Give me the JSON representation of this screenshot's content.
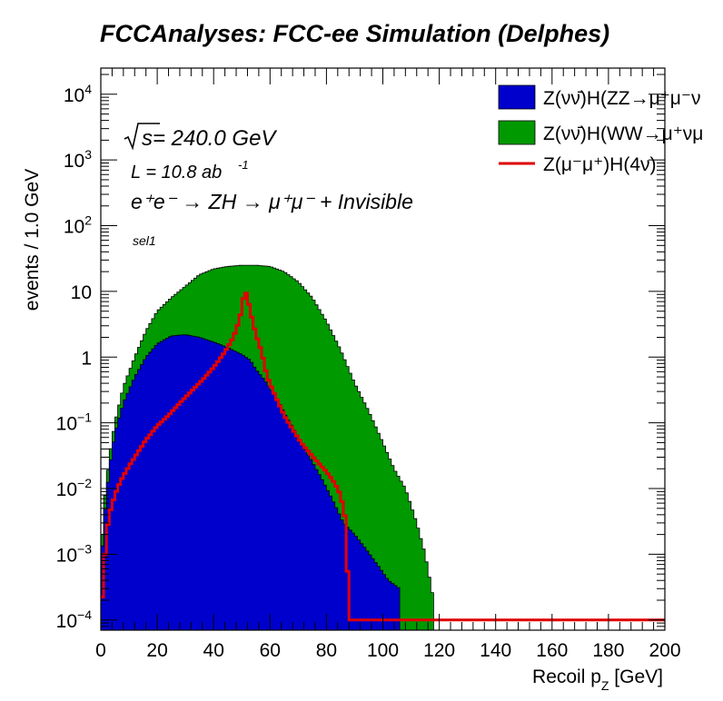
{
  "chart_data": {
    "type": "area",
    "title": "FCCAnalyses: FCC-ee Simulation (Delphes)",
    "xlabel": "Recoil p_Z [GeV]",
    "xlabel_main": "Recoil p",
    "xlabel_sub": "Z",
    "xlabel_unit": " [GeV]",
    "ylabel": "events / 1.0 GeV",
    "xlim": [
      0,
      200
    ],
    "ylim": [
      7e-05,
      25000
    ],
    "yscale": "log",
    "grid": false,
    "legend_position": "top-right",
    "x_ticks": [
      "0",
      "20",
      "40",
      "60",
      "80",
      "100",
      "120",
      "140",
      "160",
      "180",
      "200"
    ],
    "y_ticks": [
      {
        "value": 0.0001,
        "label": "10",
        "exp": "−4"
      },
      {
        "value": 0.001,
        "label": "10",
        "exp": "−3"
      },
      {
        "value": 0.01,
        "label": "10",
        "exp": "−2"
      },
      {
        "value": 0.1,
        "label": "10",
        "exp": "−1"
      },
      {
        "value": 1,
        "label": "1",
        "exp": ""
      },
      {
        "value": 10,
        "label": "10",
        "exp": ""
      },
      {
        "value": 100,
        "label": "10",
        "exp": "2"
      },
      {
        "value": 1000,
        "label": "10",
        "exp": "3"
      },
      {
        "value": 10000,
        "label": "10",
        "exp": "4"
      }
    ],
    "annotations": {
      "sqrt_s": "√s = 240.0 GeV",
      "sqrt_s_value": " = 240.0 GeV",
      "lumi": "L = 10.8 ab",
      "lumi_exp": "-1",
      "process": "e⁺e⁻ → ZH → μ⁺μ⁻ + Invisible",
      "selection": "sel1"
    },
    "series": [
      {
        "name": "Z(νν̄)H(ZZ→μ⁺μ⁻ν",
        "style": "stacked-fill",
        "color": "#0000cc",
        "points": [
          [
            0,
            0.0006
          ],
          [
            1,
            0.003
          ],
          [
            3,
            0.02
          ],
          [
            5,
            0.07
          ],
          [
            8,
            0.2
          ],
          [
            12,
            0.5
          ],
          [
            16,
            1.0
          ],
          [
            20,
            1.6
          ],
          [
            25,
            2.1
          ],
          [
            30,
            2.2
          ],
          [
            35,
            2.0
          ],
          [
            40,
            1.7
          ],
          [
            45,
            1.4
          ],
          [
            50,
            1.1
          ],
          [
            53,
            0.9
          ],
          [
            55,
            0.65
          ],
          [
            58,
            0.45
          ],
          [
            62,
            0.25
          ],
          [
            66,
            0.12
          ],
          [
            70,
            0.06
          ],
          [
            74,
            0.03
          ],
          [
            78,
            0.015
          ],
          [
            82,
            0.007
          ],
          [
            86,
            0.003
          ],
          [
            90,
            0.002
          ],
          [
            94,
            0.0012
          ],
          [
            98,
            0.0007
          ],
          [
            102,
            0.0004
          ],
          [
            106,
            0.0003
          ]
        ]
      },
      {
        "name": "Z(νν̄)H(WW→μ⁺νμ",
        "style": "stacked-fill",
        "color": "#009900",
        "points": [
          [
            0,
            0.0008
          ],
          [
            1,
            0.005
          ],
          [
            3,
            0.03
          ],
          [
            5,
            0.1
          ],
          [
            8,
            0.35
          ],
          [
            12,
            1.0
          ],
          [
            16,
            2.5
          ],
          [
            20,
            5
          ],
          [
            25,
            8
          ],
          [
            30,
            12
          ],
          [
            35,
            18
          ],
          [
            40,
            22
          ],
          [
            45,
            24
          ],
          [
            50,
            25
          ],
          [
            55,
            25
          ],
          [
            60,
            24
          ],
          [
            65,
            20
          ],
          [
            70,
            14
          ],
          [
            75,
            8
          ],
          [
            80,
            3.5
          ],
          [
            85,
            1.3
          ],
          [
            90,
            0.4
          ],
          [
            95,
            0.15
          ],
          [
            100,
            0.05
          ],
          [
            104,
            0.02
          ],
          [
            108,
            0.01
          ],
          [
            112,
            0.003
          ],
          [
            115,
            0.001
          ],
          [
            118,
            0.0002
          ]
        ]
      },
      {
        "name": "Z(μ⁻μ⁺)H(4ν)",
        "style": "line",
        "color": "#e00000",
        "points": [
          [
            0,
            0.0001
          ],
          [
            1,
            0.0005
          ],
          [
            2,
            0.002
          ],
          [
            3,
            0.004
          ],
          [
            5,
            0.008
          ],
          [
            7,
            0.013
          ],
          [
            10,
            0.022
          ],
          [
            13,
            0.035
          ],
          [
            16,
            0.055
          ],
          [
            20,
            0.09
          ],
          [
            24,
            0.13
          ],
          [
            28,
            0.2
          ],
          [
            32,
            0.3
          ],
          [
            36,
            0.45
          ],
          [
            40,
            0.7
          ],
          [
            44,
            1.2
          ],
          [
            47,
            2.0
          ],
          [
            49,
            3.5
          ],
          [
            50,
            5.5
          ],
          [
            51,
            11
          ],
          [
            52,
            8
          ],
          [
            53,
            5
          ],
          [
            55,
            2.2
          ],
          [
            57,
            1.2
          ],
          [
            59,
            0.5
          ],
          [
            62,
            0.25
          ],
          [
            65,
            0.13
          ],
          [
            68,
            0.08
          ],
          [
            71,
            0.05
          ],
          [
            74,
            0.035
          ],
          [
            77,
            0.025
          ],
          [
            80,
            0.018
          ],
          [
            83,
            0.012
          ],
          [
            85,
            0.008
          ],
          [
            86,
            0.005
          ],
          [
            87,
            0.003
          ],
          [
            88,
            0.0001
          ],
          [
            200,
            0.0001
          ]
        ]
      }
    ],
    "legend": [
      {
        "label": "Z(νν̄)H(ZZ→μ⁺μ⁻ν",
        "color": "#0000cc",
        "type": "box"
      },
      {
        "label": "Z(νν̄)H(WW→μ⁺νμ",
        "color": "#009900",
        "type": "box"
      },
      {
        "label": "Z(μ⁻μ⁺)H(4ν)",
        "color": "#e00000",
        "type": "line"
      }
    ]
  }
}
